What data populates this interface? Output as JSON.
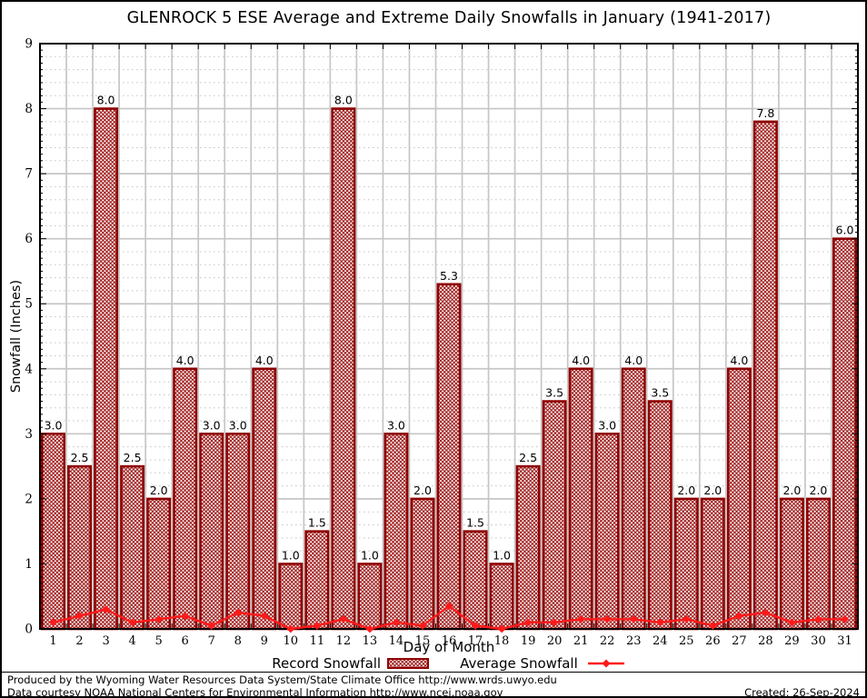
{
  "title": "GLENROCK 5 ESE Average and Extreme Daily Snowfalls in January (1941-2017)",
  "chart_data": {
    "type": "bar",
    "title": "GLENROCK 5 ESE Average and Extreme Daily Snowfalls in January (1941-2017)",
    "xlabel": "Day of Month",
    "ylabel": "Snowfall (Inches)",
    "categories": [
      1,
      2,
      3,
      4,
      5,
      6,
      7,
      8,
      9,
      10,
      11,
      12,
      13,
      14,
      15,
      16,
      17,
      18,
      19,
      20,
      21,
      22,
      23,
      24,
      25,
      26,
      27,
      28,
      29,
      30,
      31
    ],
    "series": [
      {
        "name": "Record Snowfall",
        "type": "bar",
        "values": [
          3.0,
          2.5,
          8.0,
          2.5,
          2.0,
          4.0,
          3.0,
          3.0,
          4.0,
          1.0,
          1.5,
          8.0,
          1.0,
          3.0,
          2.0,
          5.3,
          1.5,
          1.0,
          2.5,
          3.5,
          4.0,
          3.0,
          4.0,
          3.5,
          2.0,
          2.0,
          4.0,
          7.8,
          2.0,
          2.0,
          6.0
        ],
        "labels": [
          "3.0",
          "2.5",
          "8.0",
          "2.5",
          "2.0",
          "4.0",
          "3.0",
          "3.0",
          "4.0",
          "1.0",
          "1.5",
          "8.0",
          "1.0",
          "3.0",
          "2.0",
          "5.3",
          "1.5",
          "1.0",
          "2.5",
          "3.5",
          "4.0",
          "3.0",
          "4.0",
          "3.5",
          "2.0",
          "2.0",
          "4.0",
          "7.8",
          "2.0",
          "2.0",
          "6.0"
        ]
      },
      {
        "name": "Average Snowfall",
        "type": "line",
        "values": [
          0.1,
          0.2,
          0.3,
          0.1,
          0.15,
          0.2,
          0.05,
          0.25,
          0.2,
          0.0,
          0.05,
          0.15,
          0.0,
          0.1,
          0.05,
          0.35,
          0.05,
          0.0,
          0.1,
          0.1,
          0.15,
          0.15,
          0.15,
          0.1,
          0.15,
          0.05,
          0.2,
          0.25,
          0.1,
          0.15,
          0.15
        ]
      }
    ],
    "ylim": [
      0,
      9
    ],
    "yticks": [
      0,
      1,
      2,
      3,
      4,
      5,
      6,
      7,
      8,
      9
    ],
    "grid": {
      "major": "solid",
      "minor_y_step": 0.2,
      "minor_style": "dashed",
      "vertical_at_day_boundaries": true
    },
    "legend_position": "bottom"
  },
  "legend": {
    "record_label": "Record Snowfall",
    "average_label": "Average Snowfall"
  },
  "footer": {
    "line1": "Produced by the Wyoming Water Resources Data System/State Climate Office http://www.wrds.uwyo.edu",
    "line2": "Data courtesy NOAA National Centers for Environmental Information http://www.ncei.noaa.gov",
    "created": "Created: 26-Sep-2024"
  },
  "colors": {
    "bar_border": "#8f0000",
    "bar_hatch": "#9b1111",
    "bar_background": "#ffffff",
    "line": "#ff1a1a",
    "grid": "#c6c6c6",
    "frame": "#000000",
    "text": "#000000"
  }
}
